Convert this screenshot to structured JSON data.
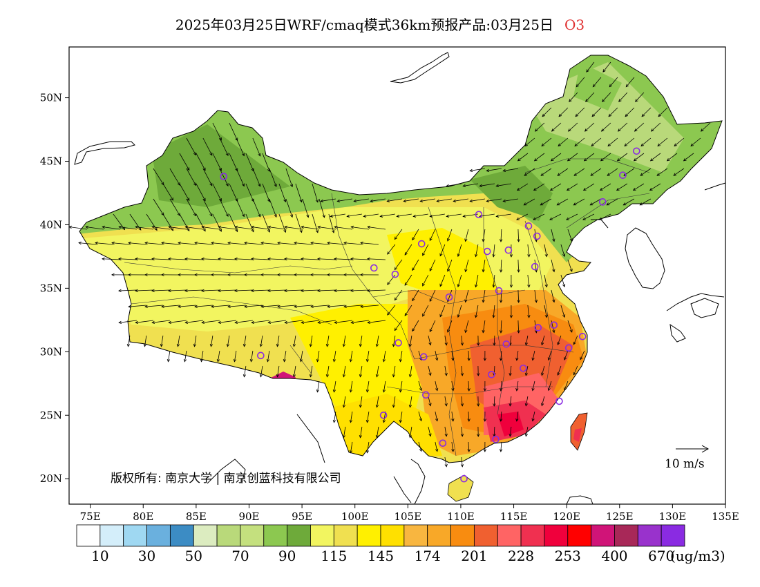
{
  "title": {
    "main": "2025年03月25日WRF/cmaq模式36km预报产品:03月25日",
    "species": "O3"
  },
  "axes": {
    "lon_labels": [
      "75E",
      "80E",
      "85E",
      "90E",
      "95E",
      "100E",
      "105E",
      "110E",
      "115E",
      "120E",
      "125E",
      "130E",
      "135E"
    ],
    "lat_labels": [
      "50N",
      "45N",
      "40N",
      "35N",
      "30N",
      "25N",
      "20N"
    ]
  },
  "colorbar": {
    "colors": [
      "#ffffff",
      "#d4eefa",
      "#9fd8f2",
      "#6ab0de",
      "#3c8cc4",
      "#dcecc0",
      "#b9d97a",
      "#c4e07e",
      "#8cc850",
      "#6eaa3a",
      "#f2f560",
      "#f0e050",
      "#fff000",
      "#ffe000",
      "#f8b640",
      "#f8a828",
      "#f88c10",
      "#f06030",
      "#ff6464",
      "#f03050",
      "#f0003c",
      "#ff0000",
      "#d01478",
      "#a82858",
      "#9932cc",
      "#8a2be2"
    ],
    "labels": [
      "10",
      "30",
      "50",
      "70",
      "90",
      "115",
      "145",
      "174",
      "201",
      "228",
      "253",
      "400",
      "670"
    ],
    "units": "(ug/m3)"
  },
  "copyright": "版权所有: 南京大学 | 南京创蓝科技有限公司",
  "wind_scale": {
    "label": "10 m/s"
  },
  "stations": [
    {
      "lon": 87.6,
      "lat": 43.8
    },
    {
      "lon": 91.1,
      "lat": 29.7
    },
    {
      "lon": 101.8,
      "lat": 36.6
    },
    {
      "lon": 103.8,
      "lat": 36.1
    },
    {
      "lon": 106.3,
      "lat": 38.5
    },
    {
      "lon": 111.7,
      "lat": 40.8
    },
    {
      "lon": 112.5,
      "lat": 37.9
    },
    {
      "lon": 114.5,
      "lat": 38.0
    },
    {
      "lon": 116.4,
      "lat": 39.9
    },
    {
      "lon": 117.2,
      "lat": 39.1
    },
    {
      "lon": 123.4,
      "lat": 41.8
    },
    {
      "lon": 125.3,
      "lat": 43.9
    },
    {
      "lon": 126.6,
      "lat": 45.8
    },
    {
      "lon": 117.0,
      "lat": 36.7
    },
    {
      "lon": 113.6,
      "lat": 34.8
    },
    {
      "lon": 108.9,
      "lat": 34.3
    },
    {
      "lon": 104.1,
      "lat": 30.7
    },
    {
      "lon": 106.5,
      "lat": 29.6
    },
    {
      "lon": 114.3,
      "lat": 30.6
    },
    {
      "lon": 112.9,
      "lat": 28.2
    },
    {
      "lon": 115.9,
      "lat": 28.7
    },
    {
      "lon": 117.3,
      "lat": 31.9
    },
    {
      "lon": 118.8,
      "lat": 32.1
    },
    {
      "lon": 120.2,
      "lat": 30.3
    },
    {
      "lon": 121.5,
      "lat": 31.2
    },
    {
      "lon": 119.3,
      "lat": 26.1
    },
    {
      "lon": 113.3,
      "lat": 23.1
    },
    {
      "lon": 108.3,
      "lat": 22.8
    },
    {
      "lon": 110.3,
      "lat": 20.0
    },
    {
      "lon": 102.7,
      "lat": 25.0
    },
    {
      "lon": 106.7,
      "lat": 26.6
    }
  ]
}
